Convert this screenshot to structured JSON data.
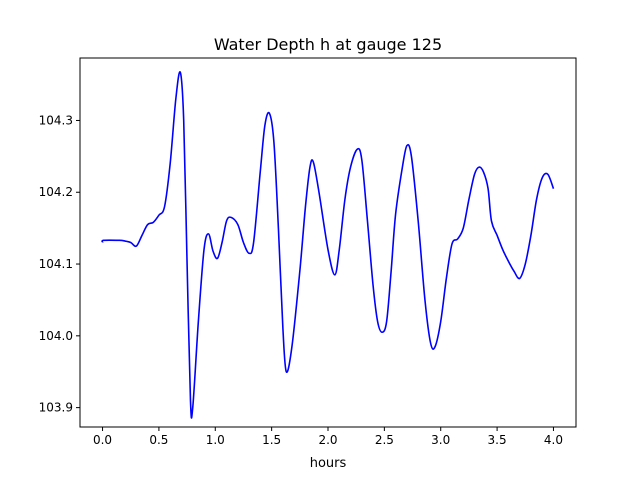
{
  "chart_data": {
    "type": "line",
    "title": "Water Depth h at gauge 125",
    "xlabel": "hours",
    "ylabel": "",
    "xlim": [
      -0.2,
      4.2
    ],
    "ylim": [
      103.873,
      104.387
    ],
    "xticks": [
      0.0,
      0.5,
      1.0,
      1.5,
      2.0,
      2.5,
      3.0,
      3.5,
      4.0
    ],
    "xtick_labels": [
      "0.0",
      "0.5",
      "1.0",
      "1.5",
      "2.0",
      "2.5",
      "3.0",
      "3.5",
      "4.0"
    ],
    "yticks": [
      103.9,
      104.0,
      104.1,
      104.2,
      104.3
    ],
    "ytick_labels": [
      "103.9",
      "104.0",
      "104.1",
      "104.2",
      "104.3"
    ],
    "grid": false,
    "legend": "none",
    "series": [
      {
        "color": "#0000ff",
        "x": [
          0.0,
          0.01,
          0.15,
          0.2,
          0.25,
          0.3,
          0.35,
          0.4,
          0.45,
          0.5,
          0.55,
          0.6,
          0.65,
          0.69,
          0.72,
          0.75,
          0.78,
          0.8,
          0.85,
          0.9,
          0.94,
          0.98,
          1.02,
          1.06,
          1.1,
          1.14,
          1.2,
          1.25,
          1.3,
          1.34,
          1.4,
          1.44,
          1.48,
          1.52,
          1.56,
          1.6,
          1.63,
          1.68,
          1.75,
          1.8,
          1.84,
          1.87,
          1.92,
          2.0,
          2.06,
          2.1,
          2.15,
          2.2,
          2.26,
          2.3,
          2.35,
          2.4,
          2.44,
          2.48,
          2.52,
          2.56,
          2.6,
          2.66,
          2.7,
          2.74,
          2.8,
          2.86,
          2.91,
          2.95,
          3.0,
          3.05,
          3.1,
          3.15,
          3.2,
          3.25,
          3.3,
          3.34,
          3.38,
          3.42,
          3.45,
          3.5,
          3.55,
          3.6,
          3.65,
          3.7,
          3.75,
          3.8,
          3.85,
          3.9,
          3.95,
          4.0
        ],
        "y": [
          104.13,
          104.133,
          104.133,
          104.132,
          104.13,
          104.125,
          104.14,
          104.155,
          104.158,
          104.168,
          104.18,
          104.24,
          104.33,
          104.367,
          104.3,
          104.1,
          103.91,
          103.9,
          104.02,
          104.12,
          104.142,
          104.118,
          104.108,
          104.13,
          104.16,
          104.165,
          104.155,
          104.13,
          104.115,
          104.13,
          104.23,
          104.293,
          104.31,
          104.27,
          104.15,
          104.01,
          103.95,
          103.985,
          104.09,
          104.18,
          104.235,
          104.242,
          104.2,
          104.12,
          104.085,
          104.12,
          104.19,
          104.235,
          104.26,
          104.245,
          104.16,
          104.07,
          104.02,
          104.005,
          104.02,
          104.09,
          104.17,
          104.235,
          104.265,
          104.25,
          104.16,
          104.05,
          103.99,
          103.985,
          104.02,
          104.08,
          104.128,
          104.135,
          104.15,
          104.19,
          104.225,
          104.235,
          104.228,
          104.205,
          104.16,
          104.14,
          104.12,
          104.104,
          104.09,
          104.08,
          104.1,
          104.14,
          104.19,
          104.22,
          104.225,
          104.205
        ]
      }
    ]
  }
}
